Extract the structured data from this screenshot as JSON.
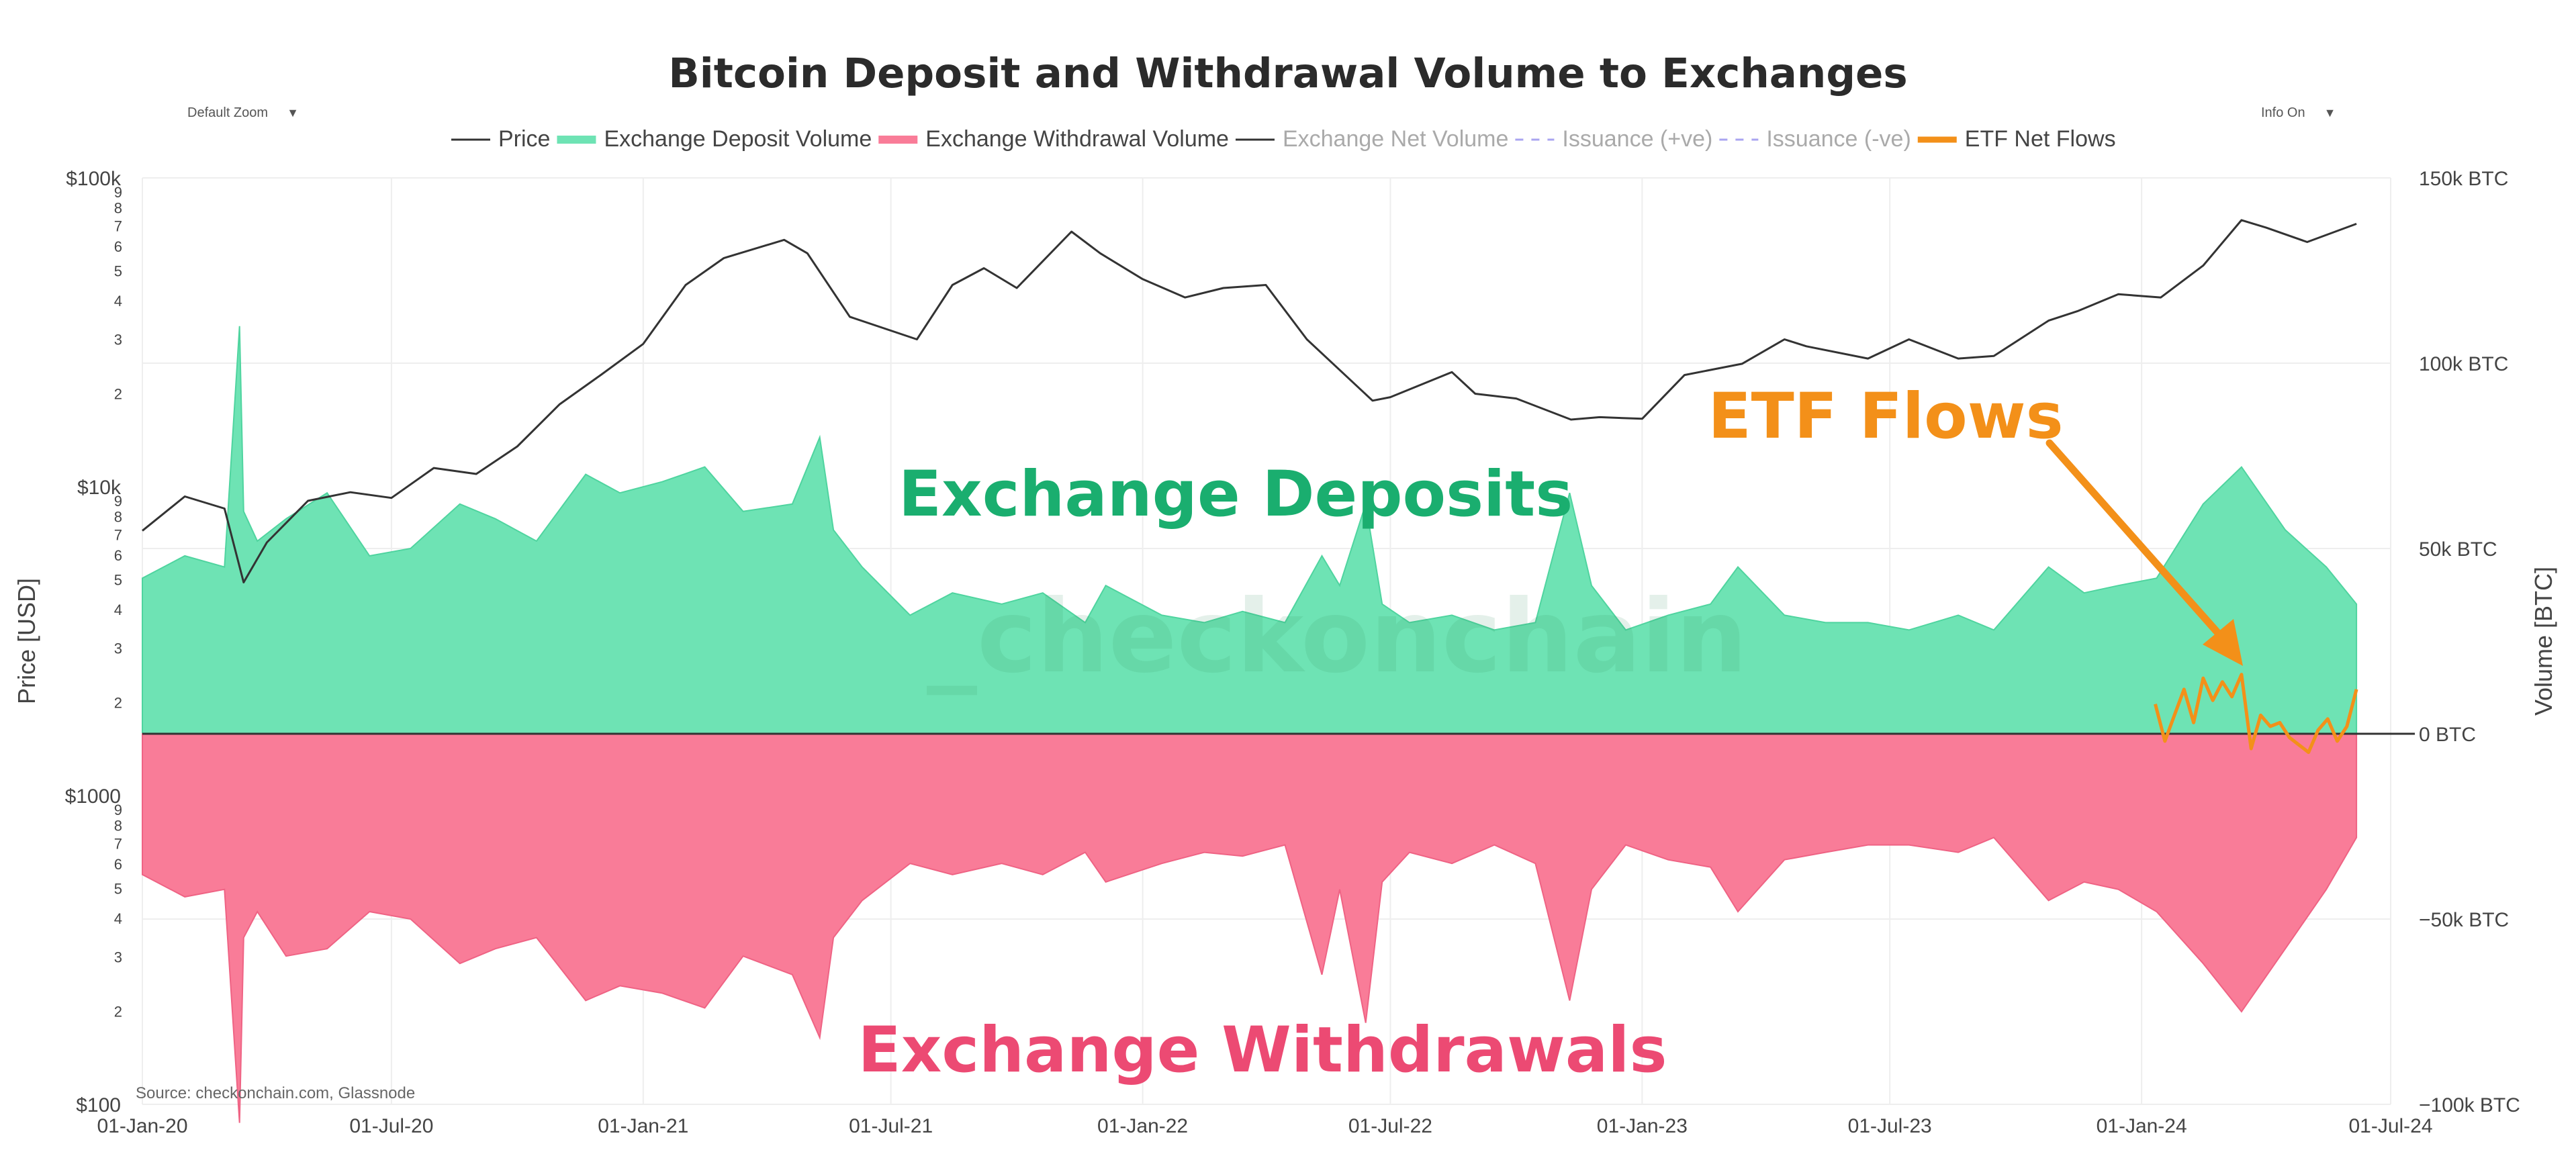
{
  "controls": {
    "zoom_label": "Default Zoom",
    "info_label": "Info On",
    "caret": "▼"
  },
  "colors": {
    "price": "#333333",
    "deposit_fill": "#6ee3b4",
    "withdraw_fill": "#f97c98",
    "etf": "#f39019",
    "net": "#333333",
    "issuance": "#a9a4f0",
    "grid": "#eeeeee"
  },
  "annotations": {
    "deposits": "Exchange Deposits",
    "withdrawals": "Exchange Withdrawals",
    "etf": "ETF Flows",
    "watermark": "_checkonchain",
    "source": "Source: checkonchain.com, Glassnode"
  },
  "chart_data": {
    "type": "area",
    "title": "Bitcoin Deposit and Withdrawal Volume to Exchanges",
    "legend": [
      {
        "name": "Price",
        "style": "line",
        "color": "#333333",
        "visible": true
      },
      {
        "name": "Exchange Deposit Volume",
        "style": "area",
        "color": "#6ee3b4",
        "visible": true
      },
      {
        "name": "Exchange Withdrawal Volume",
        "style": "area",
        "color": "#f97c98",
        "visible": true
      },
      {
        "name": "Exchange Net Volume",
        "style": "line",
        "color": "#333333",
        "visible": false
      },
      {
        "name": "Issuance (+ve)",
        "style": "dash",
        "color": "#a9a4f0",
        "visible": false
      },
      {
        "name": "Issuance (-ve)",
        "style": "dash",
        "color": "#a9a4f0",
        "visible": false
      },
      {
        "name": "ETF Net Flows",
        "style": "line",
        "color": "#f39019",
        "visible": true
      }
    ],
    "x_ticks": [
      "01-Jan-20",
      "01-Jul-20",
      "01-Jan-21",
      "01-Jul-21",
      "01-Jan-22",
      "01-Jul-22",
      "01-Jan-23",
      "01-Jul-23",
      "01-Jan-24",
      "01-Jul-24"
    ],
    "x_range": [
      "2020-01-01",
      "2024-07-01"
    ],
    "y_left": {
      "label": "Price [USD]",
      "scale": "log",
      "range": [
        100,
        100000
      ],
      "major_ticks": [
        {
          "value": 100000,
          "label": "$100k"
        },
        {
          "value": 10000,
          "label": "$10k"
        },
        {
          "value": 1000,
          "label": "$1000"
        },
        {
          "value": 100,
          "label": "$100"
        }
      ],
      "minor_labels": [
        "9",
        "8",
        "7",
        "6",
        "5",
        "4",
        "3",
        "2"
      ]
    },
    "y_right": {
      "label": "Volume [BTC]",
      "range": [
        -100000,
        150000
      ],
      "ticks": [
        {
          "value": 150000,
          "label": "150k BTC"
        },
        {
          "value": 100000,
          "label": "100k BTC"
        },
        {
          "value": 50000,
          "label": "50k BTC"
        },
        {
          "value": 0,
          "label": "0 BTC"
        },
        {
          "value": -50000,
          "label": "−50k BTC"
        },
        {
          "value": -100000,
          "label": "−100k BTC"
        }
      ]
    },
    "series": [
      {
        "name": "Price",
        "axis": "left",
        "x": [
          "2020-01-01",
          "2020-02-01",
          "2020-03-01",
          "2020-03-15",
          "2020-04-01",
          "2020-05-01",
          "2020-06-01",
          "2020-07-01",
          "2020-08-01",
          "2020-09-01",
          "2020-10-01",
          "2020-11-01",
          "2020-12-01",
          "2021-01-01",
          "2021-02-01",
          "2021-03-01",
          "2021-04-14",
          "2021-05-01",
          "2021-06-01",
          "2021-07-20",
          "2021-08-15",
          "2021-09-07",
          "2021-10-01",
          "2021-11-10",
          "2021-12-01",
          "2022-01-01",
          "2022-02-01",
          "2022-03-01",
          "2022-04-01",
          "2022-05-01",
          "2022-06-18",
          "2022-07-01",
          "2022-08-15",
          "2022-09-01",
          "2022-10-01",
          "2022-11-10",
          "2022-12-01",
          "2023-01-01",
          "2023-02-01",
          "2023-03-15",
          "2023-04-15",
          "2023-05-01",
          "2023-06-15",
          "2023-07-15",
          "2023-08-20",
          "2023-09-15",
          "2023-10-25",
          "2023-11-15",
          "2023-12-15",
          "2024-01-15",
          "2024-02-15",
          "2024-03-14",
          "2024-04-01",
          "2024-05-01",
          "2024-06-06"
        ],
        "values": [
          7200,
          9300,
          8500,
          4900,
          6600,
          9000,
          9600,
          9200,
          11500,
          11000,
          13500,
          18500,
          23000,
          29000,
          45000,
          55000,
          63000,
          57000,
          35500,
          30000,
          45000,
          51000,
          44000,
          67000,
          57000,
          47000,
          41000,
          44000,
          45000,
          30000,
          19000,
          19500,
          23500,
          20000,
          19300,
          16500,
          16800,
          16600,
          23000,
          25000,
          30000,
          28500,
          26000,
          30000,
          26000,
          26500,
          34500,
          37000,
          42000,
          41000,
          52000,
          73000,
          69000,
          62000,
          71000
        ]
      },
      {
        "name": "Exchange Deposit Volume",
        "axis": "right",
        "x": [
          "2020-01-01",
          "2020-02-01",
          "2020-03-01",
          "2020-03-12",
          "2020-03-15",
          "2020-03-25",
          "2020-04-15",
          "2020-05-15",
          "2020-06-15",
          "2020-07-15",
          "2020-08-20",
          "2020-09-15",
          "2020-10-15",
          "2020-11-20",
          "2020-12-15",
          "2021-01-15",
          "2021-02-15",
          "2021-03-15",
          "2021-04-20",
          "2021-05-10",
          "2021-05-20",
          "2021-06-10",
          "2021-07-15",
          "2021-08-15",
          "2021-09-20",
          "2021-10-20",
          "2021-11-20",
          "2021-12-05",
          "2022-01-15",
          "2022-02-15",
          "2022-03-15",
          "2022-04-15",
          "2022-05-12",
          "2022-05-25",
          "2022-06-13",
          "2022-06-25",
          "2022-07-15",
          "2022-08-15",
          "2022-09-15",
          "2022-10-15",
          "2022-11-09",
          "2022-11-25",
          "2022-12-20",
          "2023-01-20",
          "2023-02-20",
          "2023-03-12",
          "2023-04-15",
          "2023-05-15",
          "2023-06-15",
          "2023-07-15",
          "2023-08-20",
          "2023-09-15",
          "2023-10-25",
          "2023-11-20",
          "2023-12-15",
          "2024-01-12",
          "2024-02-15",
          "2024-03-14",
          "2024-04-15",
          "2024-05-15",
          "2024-06-06"
        ],
        "values": [
          42000,
          48000,
          45000,
          110000,
          60000,
          52000,
          58000,
          65000,
          48000,
          50000,
          62000,
          58000,
          52000,
          70000,
          65000,
          68000,
          72000,
          60000,
          62000,
          80000,
          55000,
          45000,
          32000,
          38000,
          35000,
          38000,
          30000,
          40000,
          32000,
          30000,
          33000,
          30000,
          48000,
          40000,
          62000,
          35000,
          30000,
          32000,
          28000,
          30000,
          65000,
          40000,
          28000,
          32000,
          35000,
          45000,
          32000,
          30000,
          30000,
          28000,
          32000,
          28000,
          45000,
          38000,
          40000,
          42000,
          62000,
          72000,
          55000,
          45000,
          35000
        ]
      },
      {
        "name": "Exchange Withdrawal Volume",
        "axis": "right",
        "x": [
          "2020-01-01",
          "2020-02-01",
          "2020-03-01",
          "2020-03-12",
          "2020-03-15",
          "2020-03-25",
          "2020-04-15",
          "2020-05-15",
          "2020-06-15",
          "2020-07-15",
          "2020-08-20",
          "2020-09-15",
          "2020-10-15",
          "2020-11-20",
          "2020-12-15",
          "2021-01-15",
          "2021-02-15",
          "2021-03-15",
          "2021-04-20",
          "2021-05-10",
          "2021-05-20",
          "2021-06-10",
          "2021-07-15",
          "2021-08-15",
          "2021-09-20",
          "2021-10-20",
          "2021-11-20",
          "2021-12-05",
          "2022-01-15",
          "2022-02-15",
          "2022-03-15",
          "2022-04-15",
          "2022-05-12",
          "2022-05-25",
          "2022-06-13",
          "2022-06-25",
          "2022-07-15",
          "2022-08-15",
          "2022-09-15",
          "2022-10-15",
          "2022-11-09",
          "2022-11-25",
          "2022-12-20",
          "2023-01-20",
          "2023-02-20",
          "2023-03-12",
          "2023-04-15",
          "2023-05-15",
          "2023-06-15",
          "2023-07-15",
          "2023-08-20",
          "2023-09-15",
          "2023-10-25",
          "2023-11-20",
          "2023-12-15",
          "2024-01-12",
          "2024-02-15",
          "2024-03-14",
          "2024-04-15",
          "2024-05-15",
          "2024-06-06"
        ],
        "values": [
          -38000,
          -44000,
          -42000,
          -105000,
          -55000,
          -48000,
          -60000,
          -58000,
          -48000,
          -50000,
          -62000,
          -58000,
          -55000,
          -72000,
          -68000,
          -70000,
          -74000,
          -60000,
          -65000,
          -82000,
          -55000,
          -45000,
          -35000,
          -38000,
          -35000,
          -38000,
          -32000,
          -40000,
          -35000,
          -32000,
          -33000,
          -30000,
          -65000,
          -42000,
          -78000,
          -40000,
          -32000,
          -35000,
          -30000,
          -35000,
          -72000,
          -42000,
          -30000,
          -34000,
          -36000,
          -48000,
          -34000,
          -32000,
          -30000,
          -30000,
          -32000,
          -28000,
          -45000,
          -40000,
          -42000,
          -48000,
          -62000,
          -75000,
          -58000,
          -42000,
          -28000
        ]
      },
      {
        "name": "ETF Net Flows",
        "axis": "right",
        "x": [
          "2024-01-11",
          "2024-01-18",
          "2024-01-25",
          "2024-02-01",
          "2024-02-08",
          "2024-02-15",
          "2024-02-22",
          "2024-02-29",
          "2024-03-07",
          "2024-03-14",
          "2024-03-21",
          "2024-03-28",
          "2024-04-04",
          "2024-04-11",
          "2024-04-18",
          "2024-04-25",
          "2024-05-02",
          "2024-05-09",
          "2024-05-16",
          "2024-05-23",
          "2024-05-30",
          "2024-06-06"
        ],
        "values": [
          8000,
          -2000,
          5000,
          12000,
          3000,
          15000,
          9000,
          14000,
          10000,
          16000,
          -4000,
          5000,
          2000,
          3000,
          -1000,
          -3000,
          -5000,
          1000,
          4000,
          -2000,
          2000,
          12000
        ]
      }
    ],
    "grid": true,
    "legend_position": "top"
  }
}
